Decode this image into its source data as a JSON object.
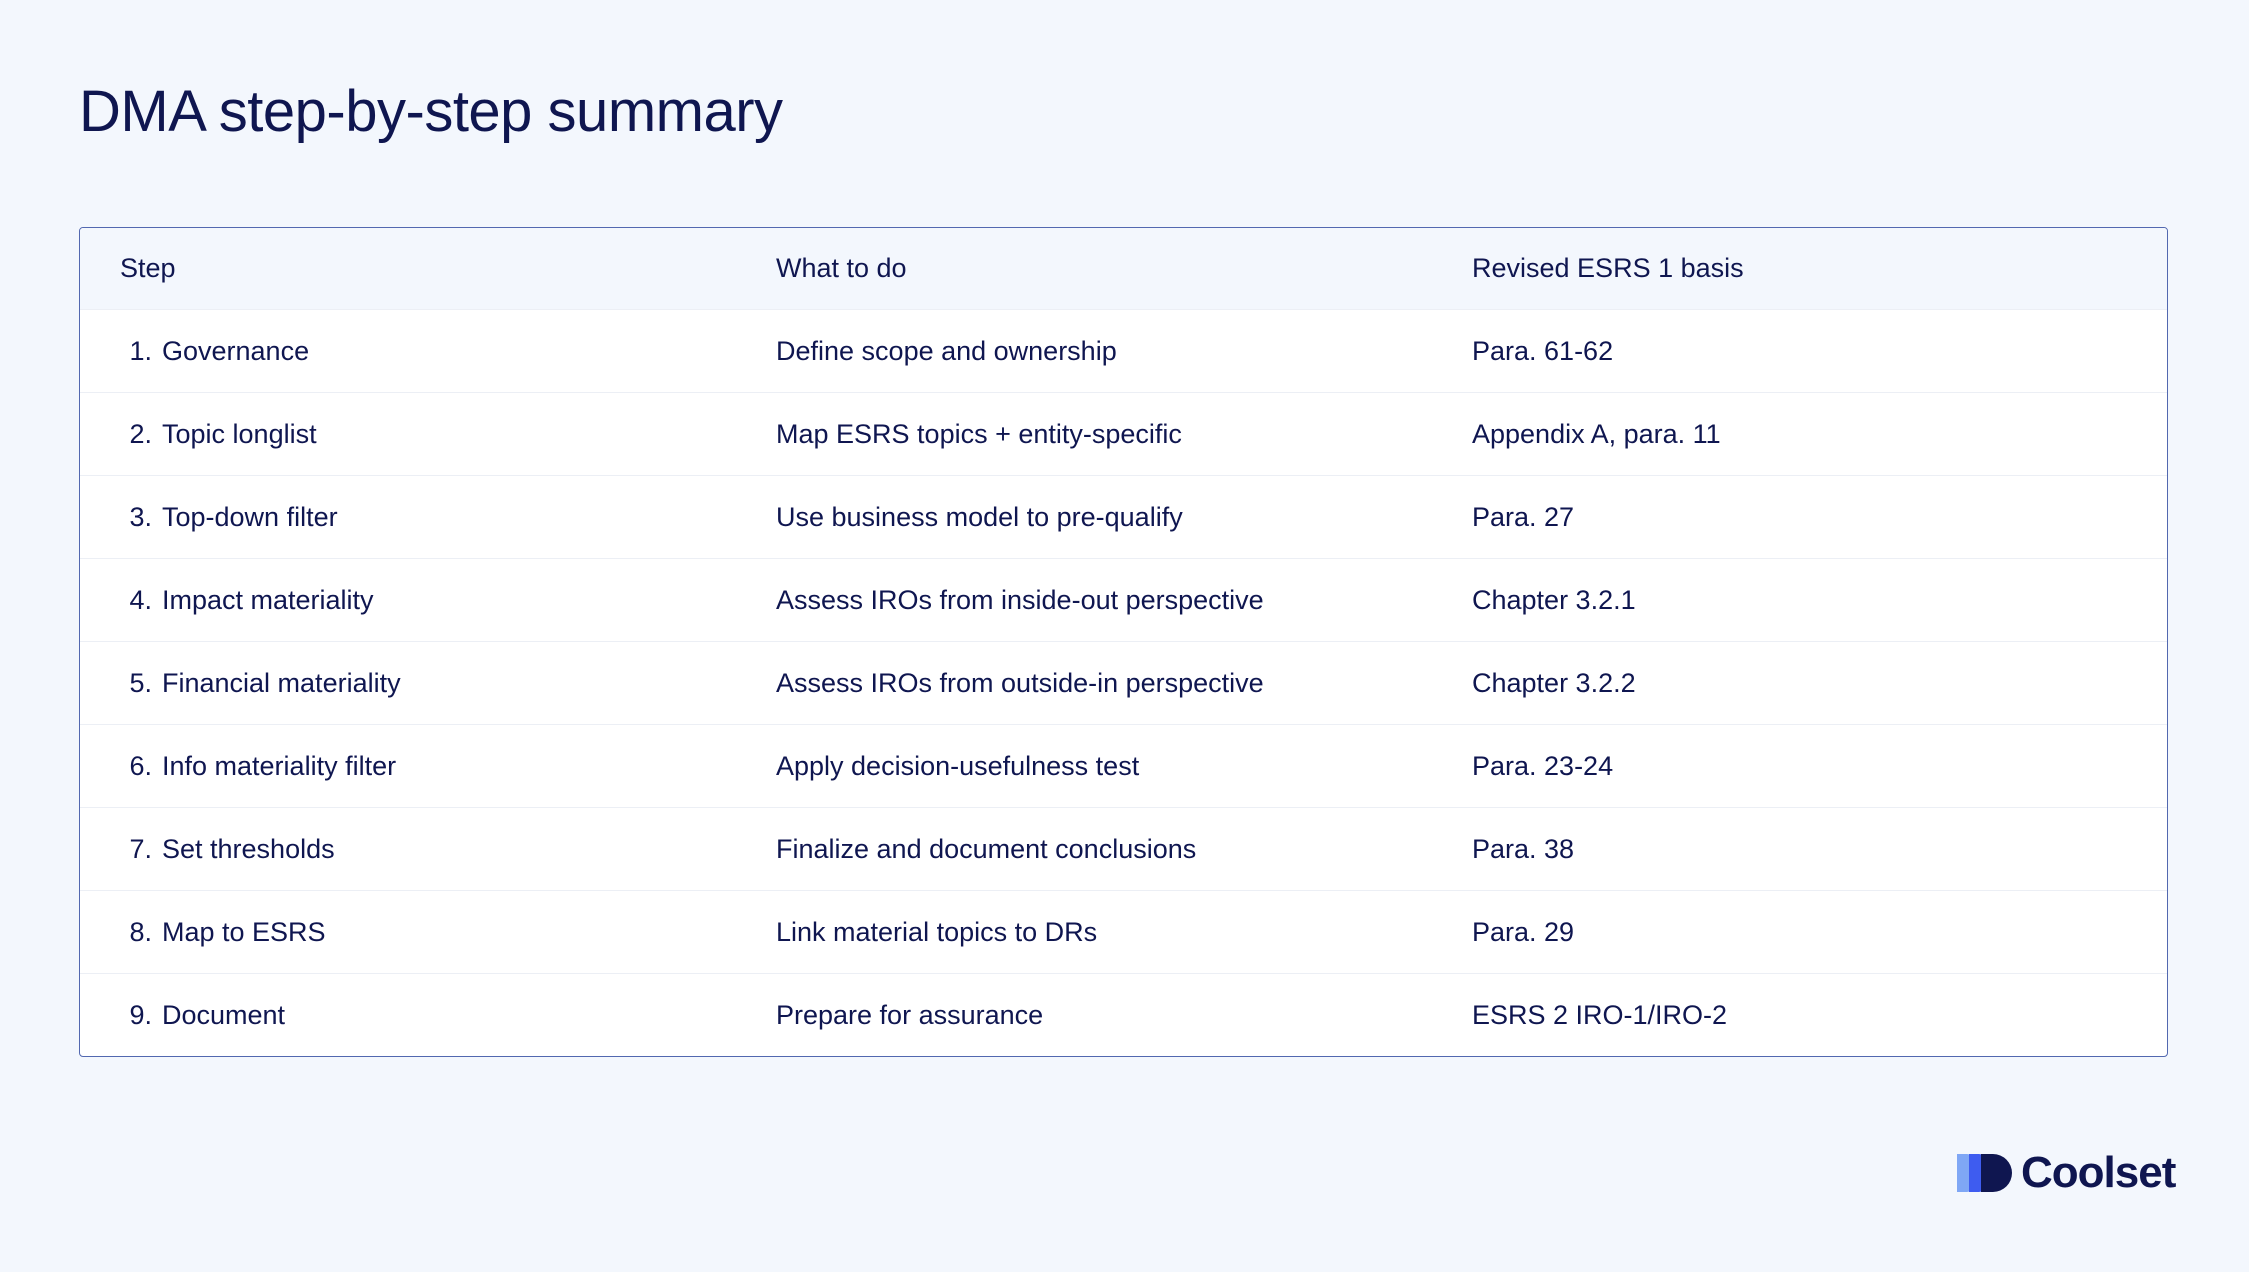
{
  "header": {
    "title": "DMA step-by-step summary"
  },
  "table": {
    "columns": [
      "Step",
      "What to do",
      "Revised ESRS 1 basis"
    ],
    "rows": [
      {
        "number": "1.",
        "step": "Governance",
        "what": "Define scope and ownership",
        "basis": "Para. 61-62"
      },
      {
        "number": "2.",
        "step": "Topic longlist",
        "what": "Map ESRS topics + entity-specific",
        "basis": "Appendix A, para. 11"
      },
      {
        "number": "3.",
        "step": "Top-down filter",
        "what": "Use business model to pre-qualify",
        "basis": "Para. 27"
      },
      {
        "number": "4.",
        "step": "Impact materiality",
        "what": "Assess IROs from inside-out perspective",
        "basis": "Chapter 3.2.1"
      },
      {
        "number": "5.",
        "step": "Financial materiality",
        "what": "Assess IROs from outside-in perspective",
        "basis": "Chapter 3.2.2"
      },
      {
        "number": "6.",
        "step": "Info materiality filter",
        "what": "Apply decision-usefulness test",
        "basis": "Para. 23-24"
      },
      {
        "number": "7.",
        "step": "Set thresholds",
        "what": "Finalize and document conclusions",
        "basis": "Para. 38"
      },
      {
        "number": "8.",
        "step": "Map to ESRS",
        "what": "Link material topics to DRs",
        "basis": "Para. 29"
      },
      {
        "number": "9.",
        "step": "Document",
        "what": "Prepare for assurance",
        "basis": "ESRS 2 IRO-1/IRO-2"
      }
    ]
  },
  "footer": {
    "brand": "Coolset"
  }
}
